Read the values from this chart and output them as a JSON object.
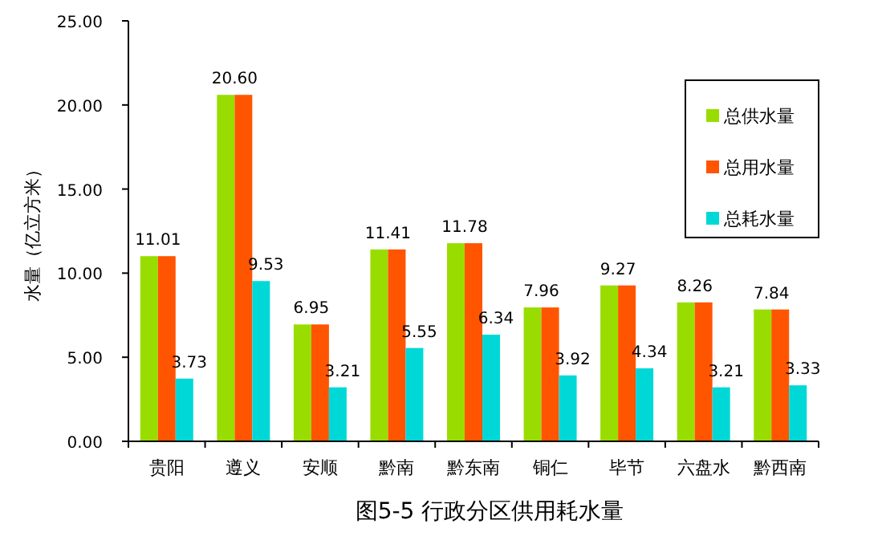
{
  "chart_data": {
    "type": "bar",
    "title": "图5-5  行政分区供用耗水量",
    "ylabel": "水量（亿立方米）",
    "categories": [
      "贵阳",
      "遵义",
      "安顺",
      "黔南",
      "黔东南",
      "铜仁",
      "毕节",
      "六盘水",
      "黔西南"
    ],
    "series": [
      {
        "name": "总供水量",
        "color": "#99dd00",
        "values": [
          11.01,
          20.6,
          6.95,
          11.41,
          11.78,
          7.96,
          9.27,
          8.26,
          7.84
        ],
        "value_labels": [
          "11.01",
          "20.60",
          "6.95",
          "11.41",
          "11.78",
          "7.96",
          "9.27",
          "8.26",
          "7.84"
        ]
      },
      {
        "name": "总用水量",
        "color": "#ff5500",
        "values": [
          11.01,
          20.6,
          6.95,
          11.41,
          11.78,
          7.96,
          9.27,
          8.26,
          7.84
        ]
      },
      {
        "name": "总耗水量",
        "color": "#00d8d8",
        "values": [
          3.73,
          9.53,
          3.21,
          5.55,
          6.34,
          3.92,
          4.34,
          3.21,
          3.33
        ],
        "value_labels": [
          "3.73",
          "9.53",
          "3.21",
          "5.55",
          "6.34",
          "3.92",
          "4.34",
          "3.21",
          "3.33"
        ]
      }
    ],
    "ylim": [
      0,
      25
    ],
    "yticks": [
      {
        "value": 0,
        "label": "0.00"
      },
      {
        "value": 5,
        "label": "5.00"
      },
      {
        "value": 10,
        "label": "10.00"
      },
      {
        "value": 15,
        "label": "15.00"
      },
      {
        "value": 20,
        "label": "20.00"
      },
      {
        "value": 25,
        "label": "25.00"
      }
    ],
    "legend": "right",
    "grid": false
  }
}
